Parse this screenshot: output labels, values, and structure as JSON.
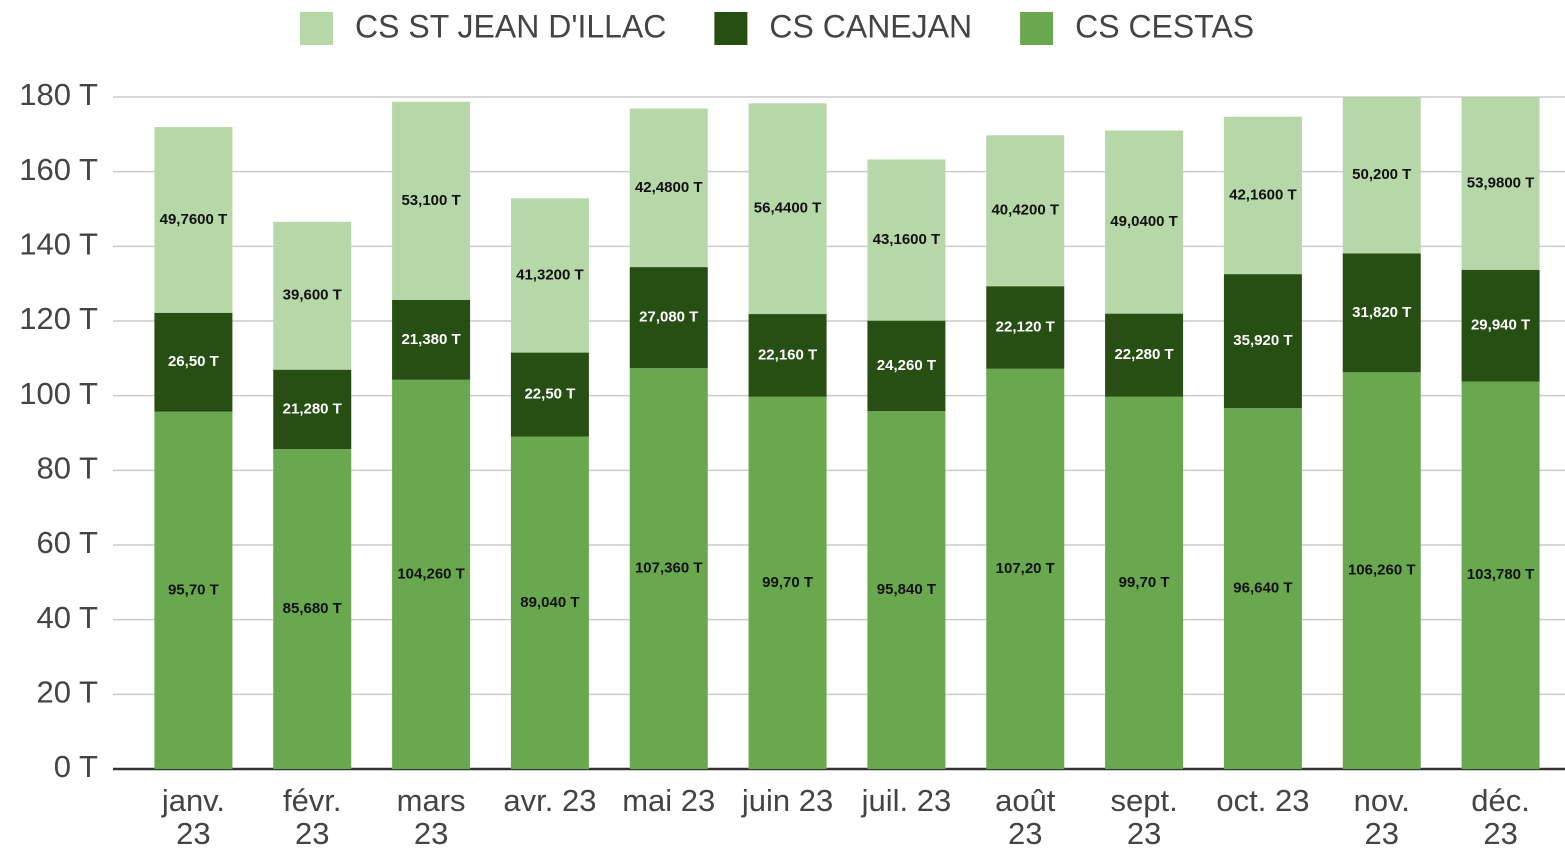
{
  "chart_data": {
    "type": "stacked_bar",
    "categories": [
      "janv.\n23",
      "févr.\n23",
      "mars\n23",
      "avr. 23",
      "mai 23",
      "juin 23",
      "juil. 23",
      "août\n23",
      "sept.\n23",
      "oct. 23",
      "nov.\n23",
      "déc.\n23"
    ],
    "series": [
      {
        "name": "CS  ST JEAN D'ILLAC",
        "color": "#b6d7a8",
        "values": [
          49.76,
          39.6,
          53.1,
          41.32,
          42.48,
          56.44,
          43.16,
          40.42,
          49.04,
          42.16,
          50.2,
          53.98
        ],
        "value_labels": [
          "49,7600 T",
          "39,600 T",
          "53,100 T",
          "41,3200 T",
          "42,4800 T",
          "56,4400 T",
          "43,1600 T",
          "40,4200 T",
          "49,0400 T",
          "42,1600 T",
          "50,200 T",
          "53,9800 T"
        ]
      },
      {
        "name": "CS CANEJAN",
        "color": "#274e13",
        "values": [
          26.5,
          21.28,
          21.38,
          22.5,
          27.08,
          22.16,
          24.26,
          22.12,
          22.28,
          35.92,
          31.82,
          29.94
        ],
        "value_labels": [
          "26,50 T",
          "21,280 T",
          "21,380 T",
          "22,50 T",
          "27,080 T",
          "22,160 T",
          "24,260 T",
          "22,120 T",
          "22,280 T",
          "35,920 T",
          "31,820 T",
          "29,940 T"
        ]
      },
      {
        "name": "CS CESTAS",
        "color": "#6aa84f",
        "values": [
          95.7,
          85.68,
          104.26,
          89.04,
          107.36,
          99.7,
          95.84,
          107.2,
          99.7,
          96.64,
          106.26,
          103.78
        ],
        "value_labels": [
          "95,70 T",
          "85,680 T",
          "104,260 T",
          "89,040 T",
          "107,360 T",
          "99,70 T",
          "95,840 T",
          "107,20 T",
          "99,70 T",
          "96,640 T",
          "106,260 T",
          "103,780 T"
        ]
      }
    ],
    "ylim": [
      0,
      180
    ],
    "yticks": [
      {
        "value": 0,
        "label": "0 T"
      },
      {
        "value": 20,
        "label": "20 T"
      },
      {
        "value": 40,
        "label": "40 T"
      },
      {
        "value": 60,
        "label": "60 T"
      },
      {
        "value": 80,
        "label": "80 T"
      },
      {
        "value": 100,
        "label": "100 T"
      },
      {
        "value": 120,
        "label": "120 T"
      },
      {
        "value": 140,
        "label": "140 T"
      },
      {
        "value": 160,
        "label": "160 T"
      },
      {
        "value": 180,
        "label": "180 T"
      }
    ],
    "grid": true,
    "legend": "top"
  }
}
